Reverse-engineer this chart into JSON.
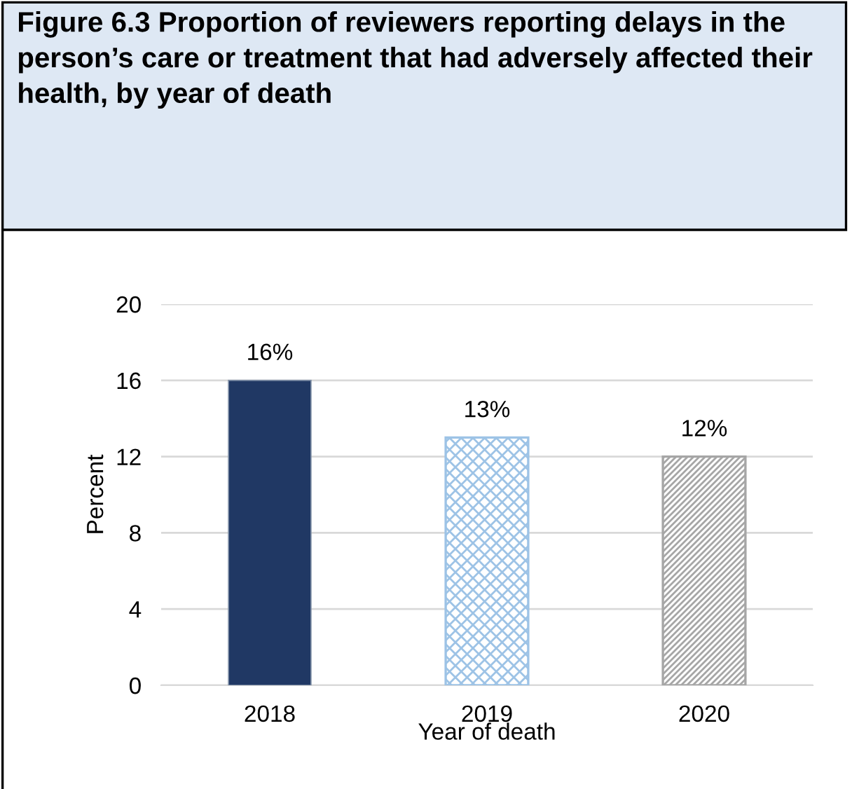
{
  "chart_data": {
    "type": "bar",
    "title": "Figure 6.3 Proportion of reviewers reporting delays in the person’s care or treatment that had adversely affected their health, by year of death",
    "categories": [
      "2018",
      "2019",
      "2020"
    ],
    "values": [
      16,
      13,
      12
    ],
    "colors": [
      "#203864",
      "#9dc3e6",
      "#a6a6a6"
    ],
    "value_labels": [
      "16%",
      "13%",
      "12%"
    ],
    "xlabel": "Year of death",
    "ylabel": "Percent",
    "ylim": [
      0,
      20
    ],
    "yticks": [
      0,
      4,
      8,
      12,
      16,
      20
    ],
    "grid": "y",
    "legend": false
  }
}
